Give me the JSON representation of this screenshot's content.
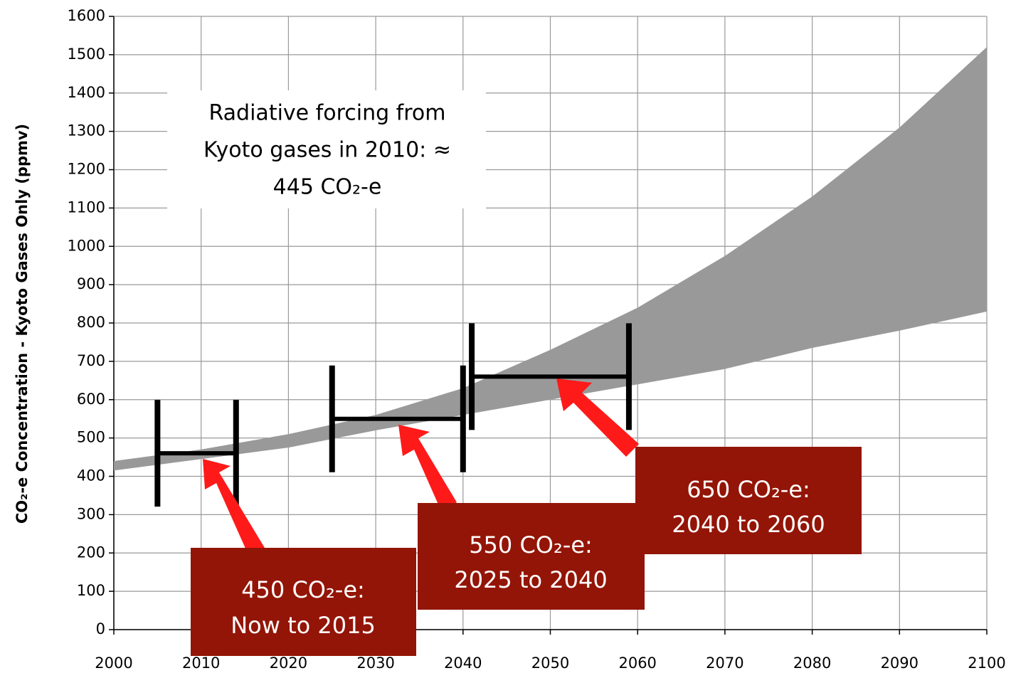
{
  "chart_data": {
    "type": "band",
    "y_label": "CO₂-e Concentration - Kyoto Gases Only (ppmv)",
    "x": [
      2000,
      2010,
      2020,
      2030,
      2040,
      2050,
      2060,
      2070,
      2080,
      2090,
      2100
    ],
    "upper": [
      440,
      470,
      510,
      560,
      630,
      730,
      840,
      975,
      1130,
      1310,
      1520
    ],
    "lower": [
      415,
      445,
      475,
      520,
      560,
      600,
      640,
      680,
      735,
      780,
      830
    ],
    "band_color": "#999999",
    "ranges": [
      {
        "x": [
          2005,
          2014
        ],
        "value": 460
      },
      {
        "x": [
          2025,
          2040
        ],
        "value": 550
      },
      {
        "x": [
          2041,
          2059
        ],
        "value": 660
      }
    ],
    "range_color": "#000000",
    "annotations": [
      [
        "450 CO₂-e:",
        "Now to 2015"
      ],
      [
        "550 CO₂-e:",
        "2025 to 2040"
      ],
      [
        "650 CO₂-e:",
        "2040 to 2060"
      ]
    ],
    "note": [
      "Radiative forcing from",
      "Kyoto gases in 2010: ≈",
      "445 CO₂-e"
    ],
    "xlim": [
      2000,
      2100
    ],
    "xticks": [
      2000,
      2010,
      2020,
      2030,
      2040,
      2050,
      2060,
      2070,
      2080,
      2090,
      2100
    ],
    "ylim": [
      0,
      1600
    ],
    "yticks": [
      0,
      100,
      200,
      300,
      400,
      500,
      600,
      700,
      800,
      900,
      1000,
      1100,
      1200,
      1300,
      1400,
      1500,
      1600
    ],
    "grid": true
  }
}
